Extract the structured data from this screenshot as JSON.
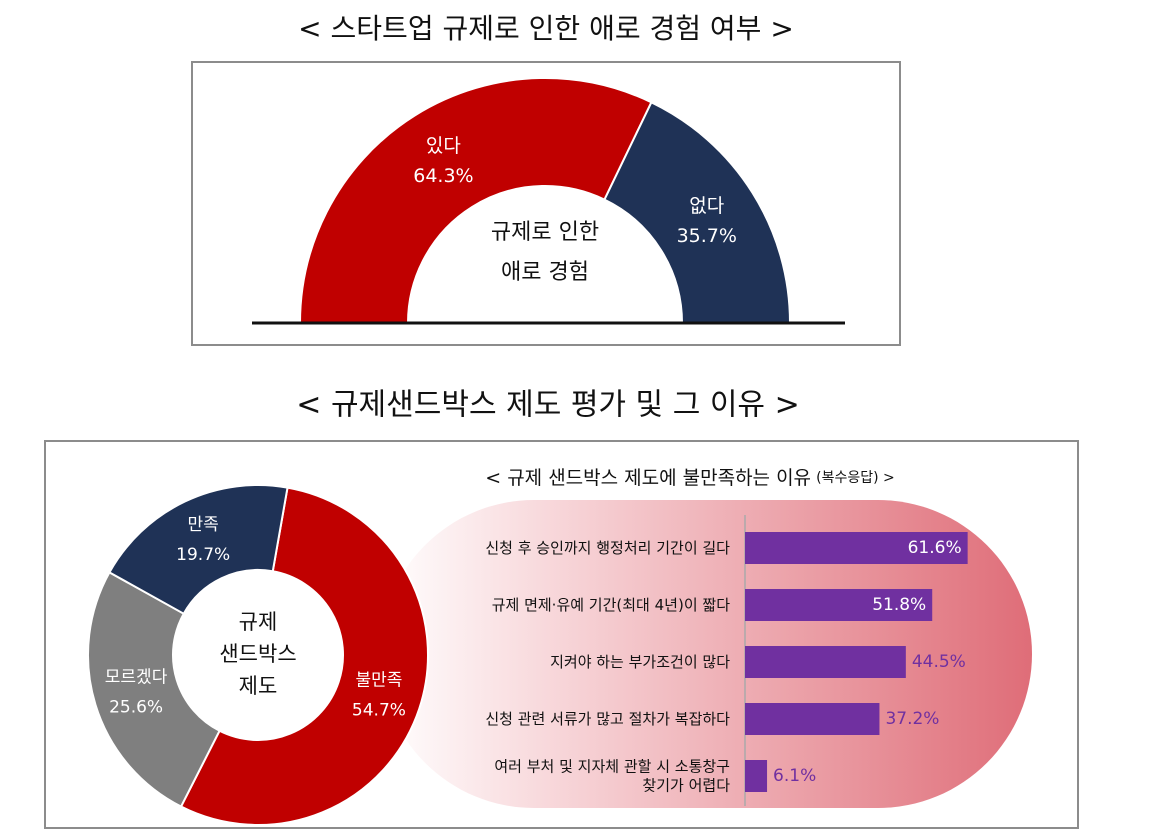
{
  "chart_data": [
    {
      "type": "donut",
      "half": true,
      "title": "< 스타트업 규제로 인한 애로 경험 여부 >",
      "center_label": [
        "규제로 인한",
        "애로 경험"
      ],
      "categories": [
        "있다",
        "없다"
      ],
      "values": [
        64.3,
        35.7
      ],
      "value_labels": [
        "64.3%",
        "35.7%"
      ],
      "colors": [
        "#c00000",
        "#1f3256"
      ]
    },
    {
      "type": "donut",
      "title": "< 규제샌드박스 제도 평가 및 그 이유 >",
      "center_label": [
        "규제",
        "샌드박스",
        "제도"
      ],
      "categories": [
        "불만족",
        "모르겠다",
        "만족"
      ],
      "values": [
        54.7,
        25.6,
        19.7
      ],
      "value_labels": [
        "54.7%",
        "25.6%",
        "19.7%"
      ],
      "colors": [
        "#c00000",
        "#7f7f7f",
        "#1f3256"
      ]
    },
    {
      "type": "bar",
      "orientation": "horizontal",
      "title": "< 규제 샌드박스 제도에 불만족하는 이유",
      "subtitle": "(복수응답) >",
      "categories": [
        "신청 후 승인까지 행정처리 기간이 길다",
        "규제 면제·유예 기간(최대 4년)이 짧다",
        "지켜야 하는 부가조건이 많다",
        "신청 관련 서류가 많고 절차가 복잡하다",
        "여러 부처 및 지자체 관할 시 소통창구\n찾기가 어렵다"
      ],
      "values": [
        61.6,
        51.8,
        44.5,
        37.2,
        6.1
      ],
      "value_labels": [
        "61.6%",
        "51.8%",
        "44.5%",
        "37.2%",
        "6.1%"
      ],
      "color": "#7030a0",
      "xlim": [
        0,
        70
      ]
    }
  ]
}
